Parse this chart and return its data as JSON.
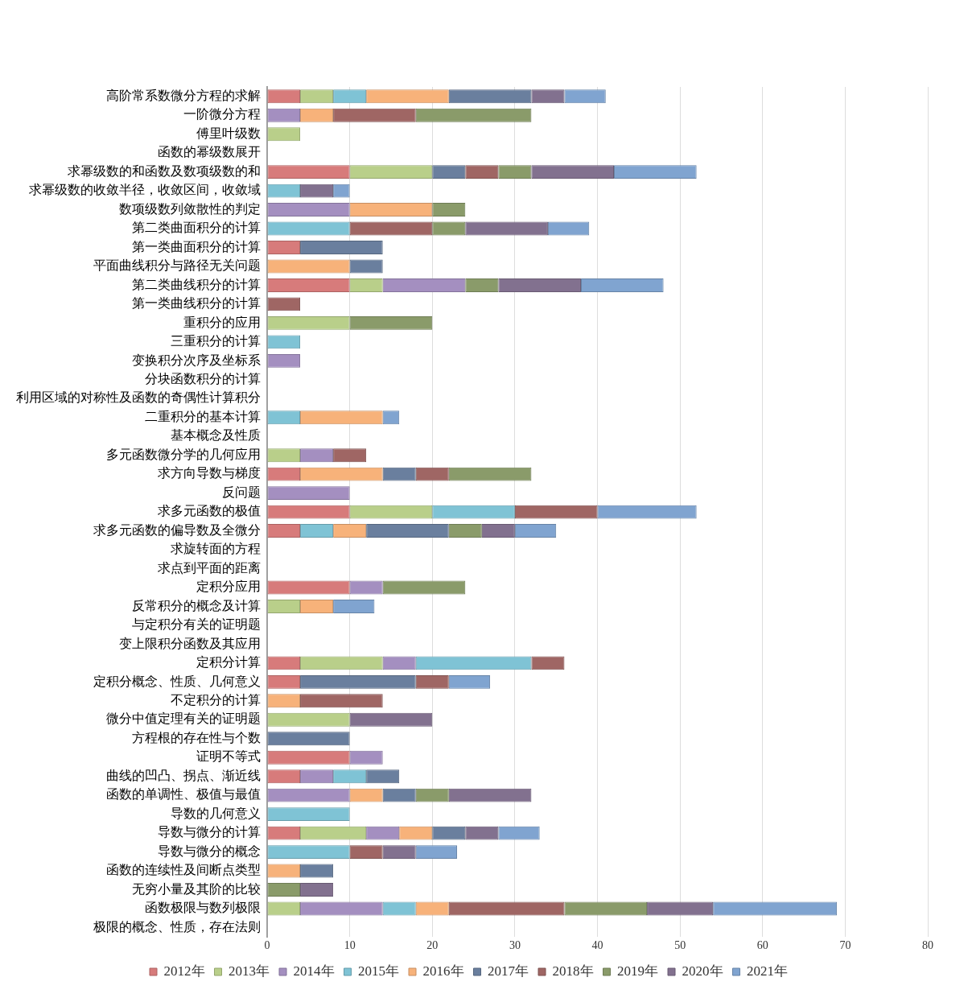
{
  "chart_data": {
    "type": "bar",
    "orientation": "horizontal",
    "stacked": true,
    "categories": [
      "高阶常系数微分方程的求解",
      "一阶微分方程",
      "傅里叶级数",
      "函数的幂级数展开",
      "求幂级数的和函数及数项级数的和",
      "求幂级数的收敛半径，收敛区间，收敛域",
      "数项级数列敛散性的判定",
      "第二类曲面积分的计算",
      "第一类曲面积分的计算",
      "平面曲线积分与路径无关问题",
      "第二类曲线积分的计算",
      "第一类曲线积分的计算",
      "重积分的应用",
      "三重积分的计算",
      "变换积分次序及坐标系",
      "分块函数积分的计算",
      "利用区域的对称性及函数的奇偶性计算积分",
      "二重积分的基本计算",
      "基本概念及性质",
      "多元函数微分学的几何应用",
      "求方向导数与梯度",
      "反问题",
      "求多元函数的极值",
      "求多元函数的偏导数及全微分",
      "求旋转面的方程",
      "求点到平面的距离",
      "定积分应用",
      "反常积分的概念及计算",
      "与定积分有关的证明题",
      "变上限积分函数及其应用",
      "定积分计算",
      "定积分概念、性质、几何意义",
      "不定积分的计算",
      "微分中值定理有关的证明题",
      "方程根的存在性与个数",
      "证明不等式",
      "曲线的凹凸、拐点、渐近线",
      "函数的单调性、极值与最值",
      "导数的几何意义",
      "导数与微分的计算",
      "导数与微分的概念",
      "函数的连续性及间断点类型",
      "无穷小量及其阶的比较",
      "函数极限与数列极限",
      "极限的概念、性质，存在法则"
    ],
    "series": [
      {
        "name": "2012年",
        "color": "#d77b7b",
        "values": [
          4,
          null,
          null,
          null,
          10,
          null,
          null,
          null,
          4,
          null,
          10,
          null,
          null,
          null,
          null,
          null,
          null,
          null,
          null,
          null,
          4,
          null,
          10,
          4,
          null,
          null,
          10,
          null,
          null,
          null,
          4,
          4,
          null,
          null,
          null,
          10,
          4,
          null,
          null,
          4,
          null,
          null,
          null,
          null,
          null
        ]
      },
      {
        "name": "2013年",
        "color": "#b9cf8a",
        "values": [
          4,
          null,
          4,
          null,
          10,
          null,
          null,
          null,
          null,
          null,
          4,
          null,
          10,
          null,
          null,
          null,
          null,
          null,
          null,
          4,
          null,
          null,
          10,
          null,
          null,
          null,
          null,
          4,
          null,
          null,
          10,
          null,
          null,
          10,
          null,
          null,
          null,
          null,
          null,
          8,
          null,
          null,
          null,
          4,
          null
        ]
      },
      {
        "name": "2014年",
        "color": "#a48fc0",
        "values": [
          null,
          4,
          null,
          null,
          null,
          null,
          10,
          null,
          null,
          null,
          10,
          null,
          null,
          null,
          4,
          null,
          null,
          null,
          null,
          4,
          null,
          10,
          null,
          null,
          null,
          null,
          4,
          null,
          null,
          null,
          4,
          null,
          null,
          null,
          null,
          4,
          4,
          10,
          null,
          4,
          null,
          null,
          null,
          10,
          null
        ]
      },
      {
        "name": "2015年",
        "color": "#7fc3d5",
        "values": [
          4,
          null,
          null,
          null,
          null,
          4,
          null,
          10,
          null,
          null,
          null,
          null,
          null,
          4,
          null,
          null,
          null,
          4,
          null,
          null,
          null,
          null,
          10,
          4,
          null,
          null,
          null,
          null,
          null,
          null,
          14,
          null,
          null,
          null,
          null,
          null,
          4,
          null,
          10,
          null,
          10,
          null,
          null,
          4,
          null
        ]
      },
      {
        "name": "2016年",
        "color": "#f7b27a",
        "values": [
          10,
          4,
          null,
          null,
          null,
          null,
          10,
          null,
          null,
          10,
          null,
          null,
          null,
          null,
          null,
          null,
          null,
          10,
          null,
          null,
          10,
          null,
          null,
          4,
          null,
          null,
          null,
          4,
          null,
          null,
          null,
          null,
          4,
          null,
          null,
          null,
          null,
          4,
          null,
          4,
          null,
          4,
          null,
          4,
          null
        ]
      },
      {
        "name": "2017年",
        "color": "#6a7f9e",
        "values": [
          10,
          null,
          null,
          null,
          4,
          null,
          null,
          null,
          10,
          4,
          null,
          null,
          null,
          null,
          null,
          null,
          null,
          null,
          null,
          null,
          4,
          null,
          null,
          10,
          null,
          null,
          null,
          null,
          null,
          null,
          null,
          14,
          null,
          null,
          10,
          null,
          4,
          4,
          null,
          4,
          null,
          4,
          null,
          null,
          null
        ]
      },
      {
        "name": "2018年",
        "color": "#9f6664",
        "values": [
          null,
          10,
          null,
          null,
          4,
          null,
          null,
          10,
          null,
          null,
          null,
          4,
          null,
          null,
          null,
          null,
          null,
          null,
          null,
          4,
          4,
          null,
          10,
          null,
          null,
          null,
          null,
          null,
          null,
          null,
          4,
          4,
          10,
          null,
          null,
          null,
          null,
          null,
          null,
          null,
          4,
          null,
          null,
          14,
          null
        ]
      },
      {
        "name": "2019年",
        "color": "#8a9b6a",
        "values": [
          null,
          14,
          null,
          null,
          4,
          null,
          4,
          4,
          null,
          null,
          4,
          null,
          10,
          null,
          null,
          null,
          null,
          null,
          null,
          null,
          10,
          null,
          null,
          4,
          null,
          null,
          10,
          null,
          null,
          null,
          null,
          null,
          null,
          null,
          null,
          null,
          null,
          4,
          null,
          null,
          null,
          null,
          4,
          10,
          null
        ]
      },
      {
        "name": "2020年",
        "color": "#82718f",
        "values": [
          4,
          null,
          null,
          null,
          10,
          4,
          null,
          10,
          null,
          null,
          10,
          null,
          null,
          null,
          null,
          null,
          null,
          null,
          null,
          null,
          null,
          null,
          null,
          4,
          null,
          null,
          null,
          null,
          null,
          null,
          null,
          null,
          null,
          10,
          null,
          null,
          null,
          10,
          null,
          4,
          4,
          null,
          4,
          8,
          null
        ]
      },
      {
        "name": "2021年",
        "color": "#80a4d0",
        "values": [
          5,
          null,
          null,
          null,
          10,
          2,
          null,
          5,
          null,
          null,
          10,
          null,
          null,
          null,
          null,
          null,
          null,
          2,
          null,
          null,
          null,
          null,
          12,
          5,
          null,
          null,
          null,
          5,
          null,
          null,
          null,
          5,
          null,
          null,
          null,
          null,
          null,
          null,
          null,
          5,
          5,
          null,
          null,
          15,
          null
        ]
      }
    ],
    "xlim": [
      0,
      80
    ],
    "xticks": [
      0,
      10,
      20,
      30,
      40,
      50,
      60,
      70,
      80
    ],
    "grid": "x",
    "legend": "bottom"
  }
}
